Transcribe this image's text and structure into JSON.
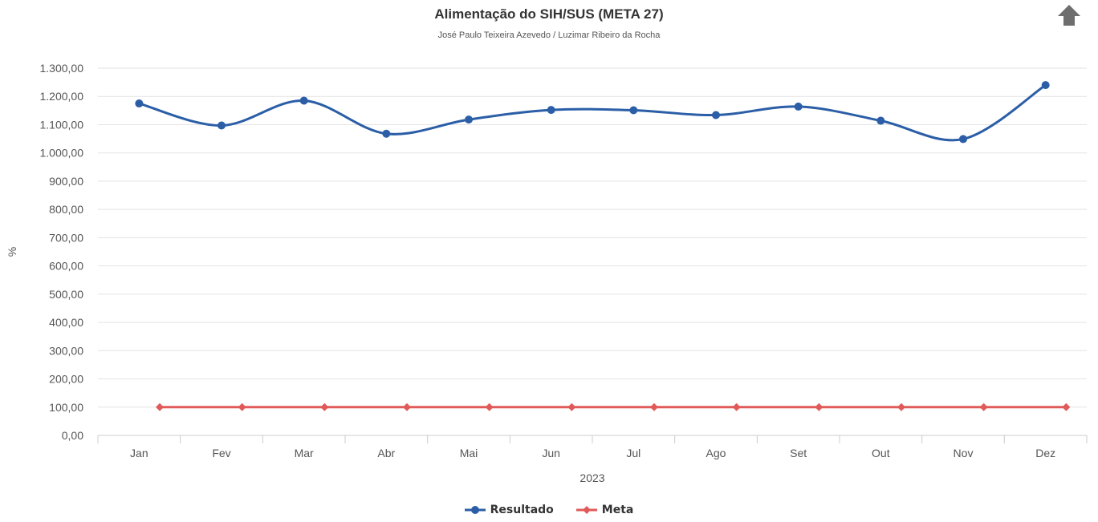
{
  "chart_data": {
    "type": "line",
    "title": "Alimentação do SIH/SUS (META 27)",
    "subtitle": "José Paulo Teixeira Azevedo / Luzimar Ribeiro da Rocha",
    "xlabel": "2023",
    "ylabel": "%",
    "categories": [
      "Jan",
      "Fev",
      "Mar",
      "Abr",
      "Mai",
      "Jun",
      "Jul",
      "Ago",
      "Set",
      "Out",
      "Nov",
      "Dez"
    ],
    "y_ticks": [
      "0,00",
      "100,00",
      "200,00",
      "300,00",
      "400,00",
      "500,00",
      "600,00",
      "700,00",
      "800,00",
      "900,00",
      "1.000,00",
      "1.100,00",
      "1.200,00",
      "1.300,00"
    ],
    "ylim": [
      0,
      1300
    ],
    "grid": true,
    "legend_position": "bottom-center",
    "series": [
      {
        "name": "Resultado",
        "color": "#2b5ea7",
        "marker": "circle",
        "smooth": true,
        "values": [
          1175,
          1097,
          1185,
          1068,
          1118,
          1152,
          1151,
          1134,
          1164,
          1114,
          1049,
          1240
        ]
      },
      {
        "name": "Meta",
        "color": "#e05a5a",
        "marker": "diamond",
        "smooth": false,
        "values": [
          100,
          100,
          100,
          100,
          100,
          100,
          100,
          100,
          100,
          100,
          100,
          100
        ]
      }
    ]
  },
  "controls": {
    "home_icon": "home-arrow-icon"
  }
}
